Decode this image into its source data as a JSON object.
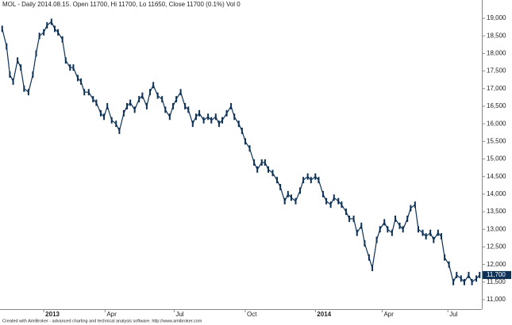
{
  "chart_data": {
    "type": "price",
    "title": "MOL - Daily 2014.08.15. Open 11700, Hi 11700, Lo 11650, Close 11700 (0.1%) Vol 0",
    "footer": "Created with AmiBroker - advanced charting and technical analysis software. http://www.amibroker.com",
    "color": "#0d3157",
    "grid": false,
    "xlim": [
      -2,
      438
    ],
    "xticks": [
      {
        "value": 38,
        "label": "2013"
      },
      {
        "value": 94,
        "label": "Apr"
      },
      {
        "value": 157,
        "label": "Jul"
      },
      {
        "value": 222,
        "label": "Oct"
      },
      {
        "value": 286,
        "label": "2014"
      },
      {
        "value": 347,
        "label": "Apr"
      },
      {
        "value": 407,
        "label": "Jul"
      }
    ],
    "bold_xticks": [
      "2013",
      "2014"
    ],
    "ylim": [
      10730,
      19520
    ],
    "yticks": [
      {
        "value": 11000,
        "label": "11,000"
      },
      {
        "value": 11500,
        "label": "11,500"
      },
      {
        "value": 12000,
        "label": "12,000"
      },
      {
        "value": 12500,
        "label": "12,500"
      },
      {
        "value": 13000,
        "label": "13,000"
      },
      {
        "value": 13500,
        "label": "13,500"
      },
      {
        "value": 14000,
        "label": "14,000"
      },
      {
        "value": 14500,
        "label": "14,500"
      },
      {
        "value": 15000,
        "label": "15,000"
      },
      {
        "value": 15500,
        "label": "15,500"
      },
      {
        "value": 16000,
        "label": "16,000"
      },
      {
        "value": 16500,
        "label": "16,500"
      },
      {
        "value": 17000,
        "label": "17,000"
      },
      {
        "value": 17500,
        "label": "17,500"
      },
      {
        "value": 18000,
        "label": "18,000"
      },
      {
        "value": 18500,
        "label": "18,500"
      },
      {
        "value": 19000,
        "label": "19,000"
      }
    ],
    "last_value": {
      "value": 11700,
      "label": "11,700"
    },
    "x": [
      0,
      4,
      7,
      10,
      14,
      17,
      20,
      24,
      28,
      31,
      34,
      38,
      41,
      45,
      48,
      51,
      55,
      58,
      62,
      65,
      69,
      72,
      75,
      79,
      83,
      86,
      90,
      93,
      96,
      100,
      104,
      107,
      111,
      114,
      117,
      121,
      125,
      128,
      132,
      135,
      138,
      142,
      146,
      149,
      153,
      156,
      159,
      163,
      167,
      170,
      174,
      177,
      180,
      184,
      188,
      191,
      195,
      198,
      201,
      205,
      209,
      212,
      216,
      219,
      222,
      226,
      230,
      233,
      237,
      240,
      243,
      247,
      251,
      254,
      258,
      261,
      264,
      268,
      272,
      275,
      279,
      282,
      286,
      289,
      293,
      296,
      300,
      303,
      307,
      310,
      314,
      317,
      321,
      324,
      328,
      331,
      335,
      338,
      342,
      345,
      349,
      352,
      356,
      359,
      363,
      366,
      370,
      373,
      377,
      380,
      384,
      387,
      391,
      394,
      398,
      401,
      404,
      408,
      412,
      415,
      419,
      422,
      426,
      429,
      433,
      436
    ],
    "values": [
      18700,
      18200,
      17400,
      17200,
      17800,
      17600,
      17000,
      16900,
      17400,
      18000,
      18500,
      18600,
      18800,
      18900,
      18700,
      18600,
      18400,
      17800,
      17600,
      17600,
      17300,
      17200,
      16900,
      16900,
      16700,
      16600,
      16300,
      16200,
      16500,
      16100,
      16000,
      15800,
      16300,
      16500,
      16600,
      16400,
      16700,
      16800,
      16500,
      16900,
      17100,
      16800,
      16700,
      16400,
      16200,
      16500,
      16700,
      16900,
      16500,
      16400,
      16000,
      16200,
      16300,
      16100,
      16200,
      16100,
      16200,
      16000,
      16100,
      16300,
      16500,
      16200,
      16000,
      15800,
      15500,
      15300,
      14900,
      14700,
      14900,
      14900,
      14700,
      14600,
      14400,
      14200,
      13800,
      14000,
      13900,
      13800,
      14100,
      14400,
      14500,
      14400,
      14500,
      14400,
      14000,
      13800,
      13700,
      13900,
      13800,
      13700,
      13500,
      13300,
      13300,
      12900,
      13100,
      12600,
      12200,
      11900,
      12700,
      13000,
      13200,
      13000,
      12900,
      13300,
      13100,
      13000,
      13300,
      13600,
      13700,
      13000,
      12900,
      12800,
      12900,
      12700,
      12900,
      12800,
      12200,
      12000,
      11500,
      11700,
      11600,
      11500,
      11700,
      11500,
      11600,
      11700
    ]
  }
}
